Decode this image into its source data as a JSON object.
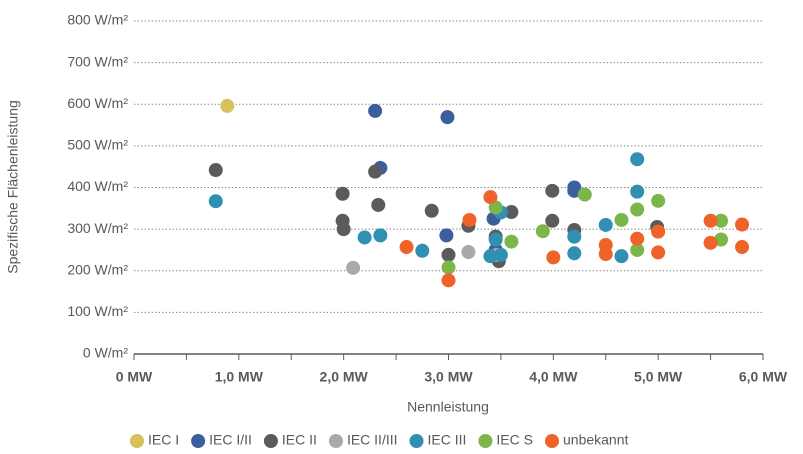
{
  "chart_data": {
    "type": "scatter",
    "xlabel": "Nennleistung",
    "ylabel": "Spezifische Flächenleistung",
    "xlim": [
      0,
      6
    ],
    "ylim": [
      0,
      800
    ],
    "xticks": [
      {
        "value": 0,
        "label": "0 MW"
      },
      {
        "value": 1,
        "label": "1,0 MW"
      },
      {
        "value": 2,
        "label": "2,0 MW"
      },
      {
        "value": 3,
        "label": "3,0 MW"
      },
      {
        "value": 4,
        "label": "4,0 MW"
      },
      {
        "value": 5,
        "label": "5,0 MW"
      },
      {
        "value": 6,
        "label": "6,0 MW"
      }
    ],
    "yticks": [
      {
        "value": 0,
        "label": "0 W/m²"
      },
      {
        "value": 100,
        "label": "100 W/m²"
      },
      {
        "value": 200,
        "label": "200 W/m²"
      },
      {
        "value": 300,
        "label": "300 W/m²"
      },
      {
        "value": 400,
        "label": "400 W/m²"
      },
      {
        "value": 500,
        "label": "500 W/m²"
      },
      {
        "value": 600,
        "label": "600 W/m²"
      },
      {
        "value": 700,
        "label": "700 W/m²"
      },
      {
        "value": 800,
        "label": "800 W/m²"
      }
    ],
    "grid": true,
    "legend": "bottom",
    "series": [
      {
        "name": "IEC I",
        "color": "#d8c15a",
        "x": [
          0.89
        ],
        "values": [
          596
        ]
      },
      {
        "name": "IEC I/II",
        "color": "#3b5f9c",
        "x": [
          2.3,
          2.99,
          2.35,
          2.98,
          3.43,
          4.2,
          4.2,
          3.45
        ],
        "values": [
          584,
          569,
          447,
          285,
          325,
          400,
          392,
          250
        ]
      },
      {
        "name": "IEC II",
        "color": "#5b5b5b",
        "x": [
          0.78,
          1.99,
          1.99,
          2.0,
          2.3,
          2.33,
          2.84,
          3.0,
          3.19,
          3.45,
          3.48,
          3.6,
          3.99,
          3.99,
          4.2,
          4.99
        ],
        "values": [
          442,
          385,
          320,
          300,
          438,
          358,
          344,
          238,
          308,
          282,
          223,
          341,
          392,
          320,
          298,
          305
        ]
      },
      {
        "name": "IEC II/III",
        "color": "#a9a9a9",
        "x": [
          2.09,
          3.19,
          3.46
        ],
        "values": [
          207,
          245,
          238
        ]
      },
      {
        "name": "IEC III",
        "color": "#2f90b1",
        "x": [
          0.78,
          2.2,
          2.35,
          2.75,
          3.4,
          3.5,
          3.45,
          3.5,
          4.2,
          4.2,
          4.5,
          4.65,
          4.8,
          4.8
        ],
        "values": [
          367,
          280,
          285,
          248,
          235,
          238,
          275,
          340,
          282,
          242,
          310,
          235,
          390,
          468
        ]
      },
      {
        "name": "IEC S",
        "color": "#7bb64a",
        "x": [
          3.0,
          3.45,
          3.6,
          3.9,
          4.3,
          4.65,
          4.8,
          4.8,
          5.0,
          5.6,
          5.6
        ],
        "values": [
          208,
          352,
          270,
          295,
          383,
          322,
          347,
          250,
          368,
          320,
          275
        ]
      },
      {
        "name": "unbekannt",
        "color": "#ef6229",
        "x": [
          2.6,
          3.0,
          3.2,
          3.4,
          4.0,
          4.5,
          4.5,
          4.8,
          5.0,
          5.0,
          5.5,
          5.5,
          5.8,
          5.8
        ],
        "values": [
          257,
          177,
          322,
          377,
          232,
          262,
          240,
          277,
          294,
          244,
          320,
          267,
          311,
          257
        ]
      }
    ]
  }
}
